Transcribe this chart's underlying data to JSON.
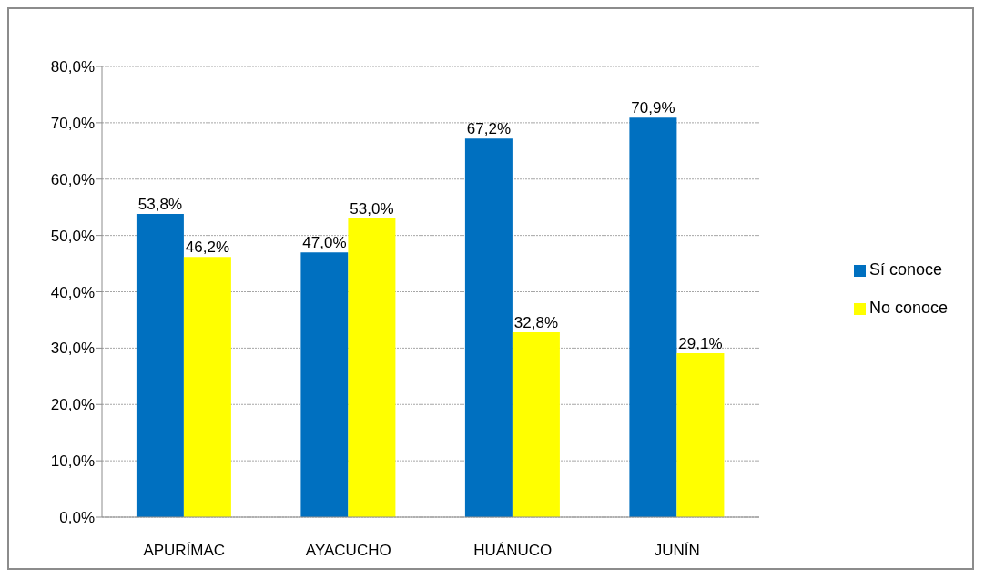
{
  "chart_data": {
    "type": "bar",
    "categories": [
      "APURÍMAC",
      "AYACUCHO",
      "HUÁNUCO",
      "JUNÍN"
    ],
    "series": [
      {
        "name": "Sí conoce",
        "color": "#0070c0",
        "values": [
          53.8,
          47.0,
          67.2,
          70.9
        ],
        "value_labels": [
          "53,8%",
          "47,0%",
          "67,2%",
          "70,9%"
        ]
      },
      {
        "name": "No conoce",
        "color": "#ffff00",
        "values": [
          46.2,
          53.0,
          32.8,
          29.1
        ],
        "value_labels": [
          "46,2%",
          "53,0%",
          "32,8%",
          "29,1%"
        ]
      }
    ],
    "ylim": [
      0,
      80
    ],
    "yticks": [
      {
        "value": 0,
        "label": "0,0%"
      },
      {
        "value": 10,
        "label": "10,0%"
      },
      {
        "value": 20,
        "label": "20,0%"
      },
      {
        "value": 30,
        "label": "30,0%"
      },
      {
        "value": 40,
        "label": "40,0%"
      },
      {
        "value": 50,
        "label": "50,0%"
      },
      {
        "value": 60,
        "label": "60,0%"
      },
      {
        "value": 70,
        "label": "70,0%"
      },
      {
        "value": 80,
        "label": "80,0%"
      }
    ],
    "grid": "y",
    "legend": "right"
  }
}
